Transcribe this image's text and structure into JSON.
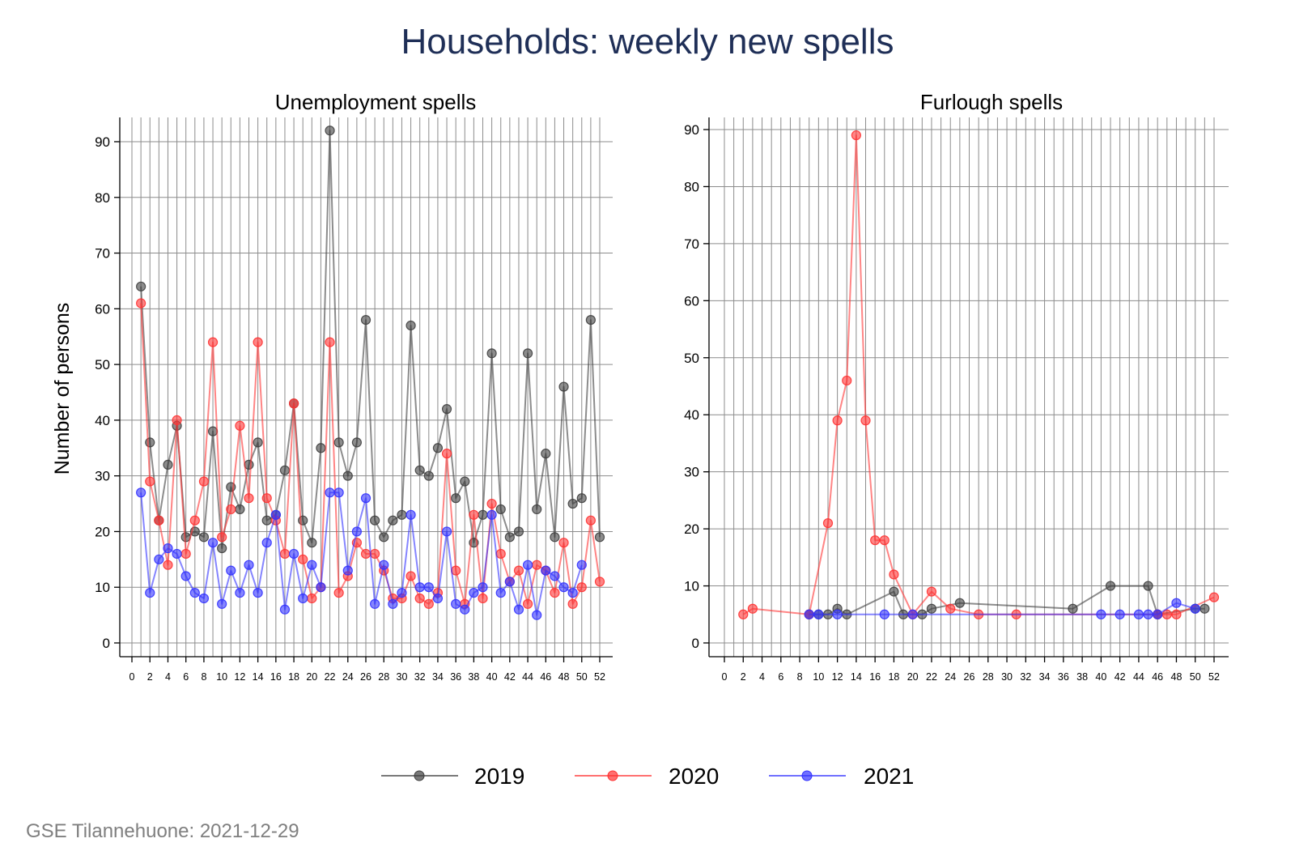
{
  "page": {
    "title": "Households: weekly new spells",
    "source": "GSE Tilannehuone: 2021-12-29",
    "y_axis_label": "Number of persons"
  },
  "colors": {
    "2019": "#404040",
    "2020": "#ff3333",
    "2021": "#3333ff"
  },
  "chart_data": [
    {
      "type": "line",
      "title": "Unemployment spells",
      "xlabel": "",
      "ylabel": "Number of persons",
      "xlim": [
        0,
        52
      ],
      "ylim": [
        0,
        92
      ],
      "xticks": [
        0,
        2,
        4,
        6,
        8,
        10,
        12,
        14,
        16,
        18,
        20,
        22,
        24,
        26,
        28,
        30,
        32,
        34,
        36,
        38,
        40,
        42,
        44,
        46,
        48,
        50,
        52
      ],
      "yticks": [
        0,
        10,
        20,
        30,
        40,
        50,
        60,
        70,
        80,
        90
      ],
      "series": [
        {
          "name": "2019",
          "x": [
            1,
            2,
            3,
            4,
            5,
            6,
            7,
            8,
            9,
            10,
            11,
            12,
            13,
            14,
            15,
            16,
            17,
            18,
            19,
            20,
            21,
            22,
            23,
            24,
            25,
            26,
            27,
            28,
            29,
            30,
            31,
            32,
            33,
            34,
            35,
            36,
            37,
            38,
            39,
            40,
            41,
            42,
            43,
            44,
            45,
            46,
            47,
            48,
            49,
            50,
            51,
            52
          ],
          "values": [
            64,
            36,
            22,
            32,
            39,
            19,
            20,
            19,
            38,
            17,
            28,
            24,
            32,
            36,
            22,
            23,
            31,
            43,
            22,
            18,
            35,
            92,
            36,
            30,
            36,
            58,
            22,
            19,
            22,
            23,
            57,
            31,
            30,
            35,
            42,
            26,
            29,
            18,
            23,
            52,
            24,
            19,
            20,
            52,
            24,
            34,
            19,
            46,
            25,
            26,
            58,
            19
          ]
        },
        {
          "name": "2020",
          "x": [
            1,
            2,
            3,
            4,
            5,
            6,
            7,
            8,
            9,
            10,
            11,
            12,
            13,
            14,
            15,
            16,
            17,
            18,
            19,
            20,
            21,
            22,
            23,
            24,
            25,
            26,
            27,
            28,
            29,
            30,
            31,
            32,
            33,
            34,
            35,
            36,
            37,
            38,
            39,
            40,
            41,
            42,
            43,
            44,
            45,
            46,
            47,
            48,
            49,
            50,
            51,
            52
          ],
          "values": [
            61,
            29,
            22,
            14,
            40,
            16,
            22,
            29,
            54,
            19,
            24,
            39,
            26,
            54,
            26,
            22,
            16,
            43,
            15,
            8,
            10,
            54,
            9,
            12,
            18,
            16,
            16,
            13,
            8,
            8,
            12,
            8,
            7,
            9,
            34,
            13,
            7,
            23,
            8,
            25,
            16,
            11,
            13,
            7,
            14,
            13,
            9,
            18,
            7,
            10,
            22,
            11
          ]
        },
        {
          "name": "2021",
          "x": [
            1,
            2,
            3,
            4,
            5,
            6,
            7,
            8,
            9,
            10,
            11,
            12,
            13,
            14,
            15,
            16,
            17,
            18,
            19,
            20,
            21,
            22,
            23,
            24,
            25,
            26,
            27,
            28,
            29,
            30,
            31,
            32,
            33,
            34,
            35,
            36,
            37,
            38,
            39,
            40,
            41,
            42,
            43,
            44,
            45,
            46,
            47,
            48,
            49,
            50
          ],
          "values": [
            27,
            9,
            15,
            17,
            16,
            12,
            9,
            8,
            18,
            7,
            13,
            9,
            14,
            9,
            18,
            23,
            6,
            16,
            8,
            14,
            10,
            27,
            27,
            13,
            20,
            26,
            7,
            14,
            7,
            9,
            23,
            10,
            10,
            8,
            20,
            7,
            6,
            9,
            10,
            23,
            9,
            11,
            6,
            14,
            5,
            13,
            12,
            10,
            9,
            14
          ]
        }
      ]
    },
    {
      "type": "line",
      "title": "Furlough spells",
      "xlabel": "",
      "ylabel": "",
      "xlim": [
        0,
        52
      ],
      "ylim": [
        0,
        90
      ],
      "xticks": [
        0,
        2,
        4,
        6,
        8,
        10,
        12,
        14,
        16,
        18,
        20,
        22,
        24,
        26,
        28,
        30,
        32,
        34,
        36,
        38,
        40,
        42,
        44,
        46,
        48,
        50,
        52
      ],
      "yticks": [
        0,
        10,
        20,
        30,
        40,
        50,
        60,
        70,
        80,
        90
      ],
      "series": [
        {
          "name": "2019",
          "x": [
            9,
            10,
            11,
            12,
            13,
            18,
            19,
            21,
            22,
            25,
            37,
            41,
            45,
            46,
            50,
            51
          ],
          "values": [
            5,
            5,
            5,
            6,
            5,
            9,
            5,
            5,
            6,
            7,
            6,
            10,
            10,
            5,
            6,
            6
          ]
        },
        {
          "name": "2020",
          "x": [
            2,
            3,
            9,
            11,
            12,
            13,
            14,
            15,
            16,
            17,
            18,
            20,
            22,
            24,
            27,
            31,
            46,
            47,
            48,
            52
          ],
          "values": [
            5,
            6,
            5,
            21,
            39,
            46,
            89,
            39,
            18,
            18,
            12,
            5,
            9,
            6,
            5,
            5,
            5,
            5,
            5,
            8
          ]
        },
        {
          "name": "2021",
          "x": [
            9,
            10,
            12,
            17,
            20,
            40,
            42,
            44,
            45,
            46,
            48,
            50
          ],
          "values": [
            5,
            5,
            5,
            5,
            5,
            5,
            5,
            5,
            5,
            5,
            7,
            6
          ]
        }
      ]
    }
  ],
  "legend": {
    "position": "bottom-center",
    "items": [
      "2019",
      "2020",
      "2021"
    ]
  }
}
